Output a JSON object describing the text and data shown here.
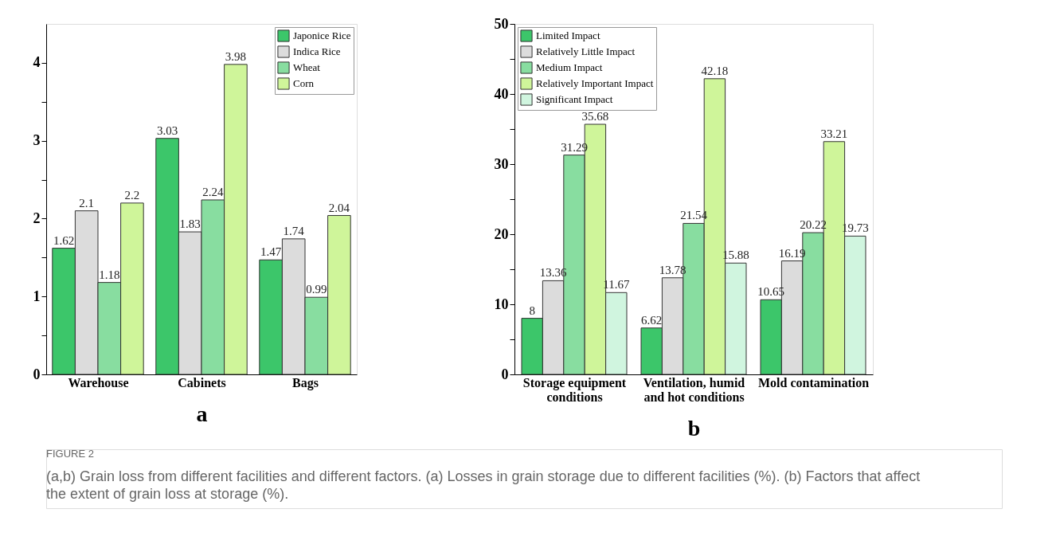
{
  "chart_data": [
    {
      "type": "bar",
      "xlabel": "a",
      "categories": [
        "Warehouse",
        "Cabinets",
        "Bags"
      ],
      "series": [
        {
          "name": "Japonice Rice",
          "color": "#3cc66a",
          "values": [
            1.62,
            3.03,
            1.47
          ]
        },
        {
          "name": "Indica Rice",
          "color": "#dcdcdc",
          "values": [
            2.1,
            1.83,
            1.74
          ]
        },
        {
          "name": "Wheat",
          "color": "#88dda0",
          "values": [
            1.18,
            2.24,
            0.99
          ]
        },
        {
          "name": "Corn",
          "color": "#cff59a",
          "values": [
            2.2,
            3.98,
            2.04
          ]
        }
      ],
      "ylim": [
        0,
        4.5
      ],
      "yticks": [
        0,
        {
          "value": 0.5,
          "label": null
        },
        1,
        {
          "value": 1.5,
          "label": null
        },
        2,
        {
          "value": 2.5,
          "label": null
        },
        3,
        {
          "value": 3.5,
          "label": null
        },
        4
      ],
      "data_labels": true,
      "legend": "top right",
      "annotations": [
        "FIGURE 2",
        "(a,b) Grain loss from different facilities and different factors. (a) Losses in grain storage due to different facilities (%). (b) Factors that affect the extent of grain loss at storage (%)."
      ]
    },
    {
      "type": "bar",
      "xlabel": "b",
      "categories": [
        "Storage equipment\nconditions",
        "Ventilation, humid\nand hot conditions",
        "Mold contamination"
      ],
      "series": [
        {
          "name": "Limited Impact",
          "color": "#3cc66a",
          "values": [
            8,
            6.62,
            10.65
          ]
        },
        {
          "name": "Relatively Little Impact",
          "color": "#dcdcdc",
          "values": [
            13.36,
            13.78,
            16.19
          ]
        },
        {
          "name": "Medium Impact",
          "color": "#88dda0",
          "values": [
            31.29,
            21.54,
            20.22
          ]
        },
        {
          "name": "Relatively Important Impact",
          "color": "#cff59a",
          "values": [
            35.68,
            42.18,
            33.21
          ]
        },
        {
          "name": "Significant Impact",
          "color": "#d0f5df",
          "values": [
            11.67,
            15.88,
            19.73
          ]
        }
      ],
      "ylim": [
        0,
        50
      ],
      "yticks": [
        0,
        {
          "value": 5,
          "label": null
        },
        10,
        {
          "value": 15,
          "label": null
        },
        20,
        {
          "value": 25,
          "label": null
        },
        30,
        {
          "value": 35,
          "label": null
        },
        40,
        {
          "value": 45,
          "label": null
        },
        50
      ],
      "data_labels": true,
      "legend": "top left"
    }
  ]
}
